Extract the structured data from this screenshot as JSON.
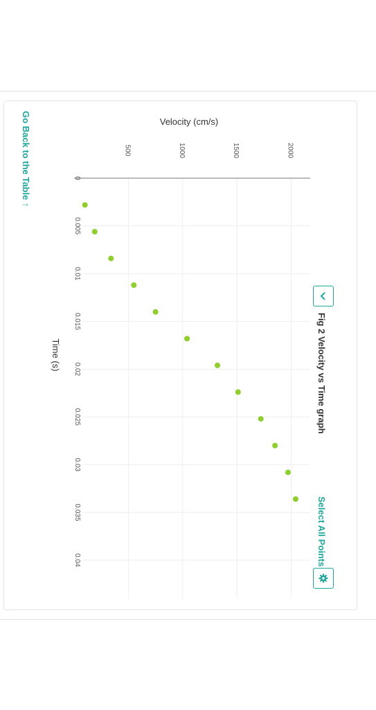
{
  "page": {
    "back_link": "Go Back to the Table ↑",
    "figure_title": "Fig 2 Velocity vs Time graph",
    "select_all": "Select All Points",
    "icons": {
      "prev": "chevron-left-icon",
      "settings": "gear-icon"
    },
    "accent_color": "#1ba89c"
  },
  "chart_data": {
    "type": "scatter",
    "xlabel": "Time (s)",
    "ylabel": "Velocity (cm/s)",
    "xlim": [
      0,
      0.044
    ],
    "ylim": [
      0,
      2200
    ],
    "x_ticks": [
      0,
      0.005,
      0.01,
      0.015,
      0.02,
      0.025,
      0.03,
      0.035,
      0.04
    ],
    "x_tick_labels": [
      "0",
      "0.005",
      "0.01",
      "0.015",
      "0.02",
      "0.025",
      "0.03",
      "0.035",
      "0.04"
    ],
    "y_ticks": [
      500,
      1000,
      1500,
      2000
    ],
    "y_tick_labels": [
      "500",
      "1000",
      "1500",
      "2000"
    ],
    "grid": true,
    "point_color": "#8ecf2a",
    "x": [
      0.0028,
      0.0056,
      0.0084,
      0.0112,
      0.014,
      0.0168,
      0.0196,
      0.0224,
      0.0252,
      0.028,
      0.0308,
      0.0336
    ],
    "y": [
      100,
      190,
      340,
      550,
      750,
      1040,
      1320,
      1510,
      1720,
      1850,
      1970,
      2040
    ]
  }
}
